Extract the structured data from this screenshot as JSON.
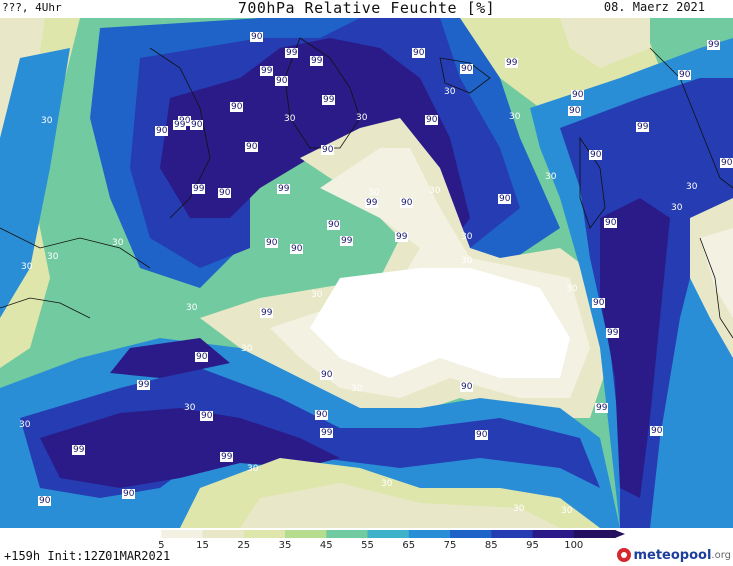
{
  "header": {
    "left": "???, 4Uhr",
    "title": "700hPa Relative Feuchte [%]",
    "date": "08. Maerz 2021"
  },
  "footer": {
    "run_info": "+159h  Init:12Z01MAR2021",
    "brand": {
      "name": "meteopool",
      "tld": ".org"
    }
  },
  "legend": {
    "ticks": [
      "5",
      "15",
      "25",
      "35",
      "45",
      "55",
      "65",
      "75",
      "85",
      "95",
      "100"
    ],
    "colors": [
      "#ffffff",
      "#f3f1e2",
      "#e8e8c8",
      "#dfe6ac",
      "#b6dc8d",
      "#72cba0",
      "#3fb2c9",
      "#2a8ed6",
      "#1f63c9",
      "#253cb3",
      "#2b1b88",
      "#24105f"
    ]
  },
  "map_labels": [
    {
      "t": "90",
      "v": 90
    },
    {
      "t": "99",
      "v": 99
    },
    {
      "t": "99",
      "v": 99
    },
    {
      "t": "99",
      "v": 99
    },
    {
      "t": "90",
      "v": 90
    },
    {
      "t": "90",
      "v": 90
    },
    {
      "t": "90",
      "v": 90
    },
    {
      "t": "99",
      "v": 99
    },
    {
      "t": "30",
      "v": 30
    },
    {
      "t": "90",
      "v": 90
    },
    {
      "t": "99",
      "v": 99
    },
    {
      "t": "90",
      "v": 90
    },
    {
      "t": "30",
      "v": 30
    },
    {
      "t": "30",
      "v": 30
    },
    {
      "t": "99",
      "v": 99
    },
    {
      "t": "90",
      "v": 90
    },
    {
      "t": "30",
      "v": 30
    },
    {
      "t": "90",
      "v": 90
    },
    {
      "t": "90",
      "v": 90
    },
    {
      "t": "90",
      "v": 90
    },
    {
      "t": "90",
      "v": 90
    },
    {
      "t": "90",
      "v": 90
    },
    {
      "t": "30",
      "v": 30
    },
    {
      "t": "90",
      "v": 90
    },
    {
      "t": "99",
      "v": 99
    },
    {
      "t": "90",
      "v": 90
    },
    {
      "t": "99",
      "v": 99
    },
    {
      "t": "90",
      "v": 90
    },
    {
      "t": "99",
      "v": 99
    },
    {
      "t": "90",
      "v": 90
    },
    {
      "t": "30",
      "v": 30
    },
    {
      "t": "30",
      "v": 30
    },
    {
      "t": "30",
      "v": 30
    },
    {
      "t": "99",
      "v": 99
    },
    {
      "t": "90",
      "v": 90
    },
    {
      "t": "90",
      "v": 90
    },
    {
      "t": "99",
      "v": 99
    },
    {
      "t": "90",
      "v": 90
    },
    {
      "t": "30",
      "v": 30
    },
    {
      "t": "30",
      "v": 30
    },
    {
      "t": "90",
      "v": 90
    },
    {
      "t": "30",
      "v": 30
    },
    {
      "t": "30",
      "v": 30
    },
    {
      "t": "90",
      "v": 90
    },
    {
      "t": "99",
      "v": 99
    },
    {
      "t": "30",
      "v": 30
    },
    {
      "t": "30",
      "v": 30
    },
    {
      "t": "30",
      "v": 30
    },
    {
      "t": "30",
      "v": 30
    },
    {
      "t": "90",
      "v": 90
    },
    {
      "t": "30",
      "v": 30
    },
    {
      "t": "30",
      "v": 30
    },
    {
      "t": "90",
      "v": 90
    },
    {
      "t": "30",
      "v": 30
    },
    {
      "t": "99",
      "v": 99
    },
    {
      "t": "90",
      "v": 90
    },
    {
      "t": "30",
      "v": 30
    },
    {
      "t": "99",
      "v": 99
    },
    {
      "t": "90",
      "v": 90
    },
    {
      "t": "99",
      "v": 99
    },
    {
      "t": "99",
      "v": 99
    },
    {
      "t": "30",
      "v": 30
    },
    {
      "t": "90",
      "v": 90
    },
    {
      "t": "30",
      "v": 30
    },
    {
      "t": "90",
      "v": 90
    },
    {
      "t": "90",
      "v": 90
    },
    {
      "t": "90",
      "v": 90
    },
    {
      "t": "99",
      "v": 99
    },
    {
      "t": "99",
      "v": 99
    },
    {
      "t": "90",
      "v": 90
    },
    {
      "t": "30",
      "v": 30
    },
    {
      "t": "30",
      "v": 30
    },
    {
      "t": "90",
      "v": 90
    },
    {
      "t": "99",
      "v": 99
    },
    {
      "t": "99",
      "v": 99
    },
    {
      "t": "30",
      "v": 30
    },
    {
      "t": "90",
      "v": 90
    },
    {
      "t": "90",
      "v": 90
    },
    {
      "t": "30",
      "v": 30
    },
    {
      "t": "30",
      "v": 30
    }
  ]
}
